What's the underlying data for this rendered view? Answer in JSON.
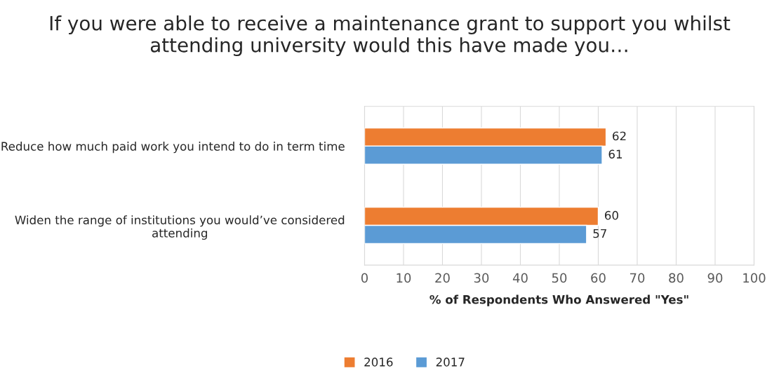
{
  "chart_data": {
    "type": "bar",
    "orientation": "horizontal",
    "title": "If you were able to receive a maintenance grant to support you whilst attending university would this have made you…",
    "xlabel": "% of Respondents Who Answered \"Yes\"",
    "categories": [
      "Reduce how much paid work you intend to do in term time",
      "Widen the range of institutions you would’ve considered attending"
    ],
    "series": [
      {
        "name": "2016",
        "color": "#ed7d31",
        "values": [
          62,
          60
        ]
      },
      {
        "name": "2017",
        "color": "#5b9bd5",
        "values": [
          61,
          57
        ]
      }
    ],
    "xlim": [
      0,
      100
    ],
    "xticks": [
      0,
      10,
      20,
      30,
      40,
      50,
      60,
      70,
      80,
      90,
      100
    ],
    "grid": "x",
    "legend": "bottom",
    "data_labels": true
  }
}
